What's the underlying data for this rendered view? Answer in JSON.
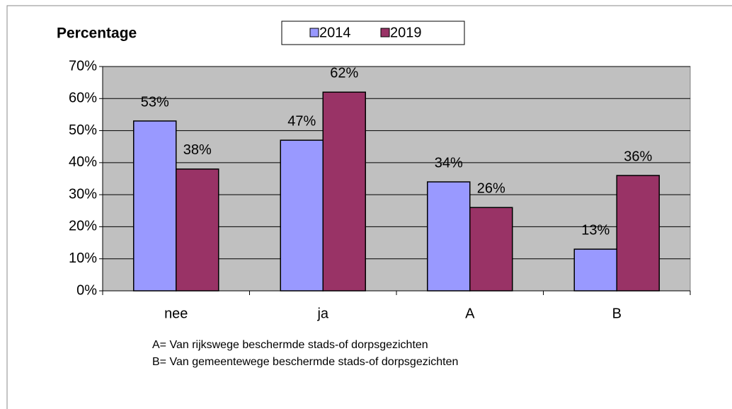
{
  "chart_data": {
    "type": "bar",
    "title": "Percentage",
    "categories": [
      "nee",
      "ja",
      "A",
      "B"
    ],
    "series": [
      {
        "name": "2014",
        "color": "#9999ff",
        "values": [
          53,
          47,
          34,
          13
        ],
        "value_labels": [
          "53%",
          "47%",
          "34%",
          "13%"
        ]
      },
      {
        "name": "2019",
        "color": "#993366",
        "values": [
          38,
          62,
          26,
          36
        ],
        "value_labels": [
          "38%",
          "62%",
          "26%",
          "36%"
        ]
      }
    ],
    "ylim": [
      0,
      70
    ],
    "yticks": [
      {
        "value": 0,
        "label": "0%"
      },
      {
        "value": 10,
        "label": "10%"
      },
      {
        "value": 20,
        "label": "20%"
      },
      {
        "value": 30,
        "label": "30%"
      },
      {
        "value": 40,
        "label": "40%"
      },
      {
        "value": 50,
        "label": "50%"
      },
      {
        "value": 60,
        "label": "60%"
      },
      {
        "value": 70,
        "label": "70%"
      }
    ],
    "grid": true,
    "legend": "top",
    "notes": [
      "A= Van rijkswege beschermde stads-of dorpsgezichten",
      "B= Van gemeentewege beschermde stads-of dorpsgezichten"
    ]
  }
}
